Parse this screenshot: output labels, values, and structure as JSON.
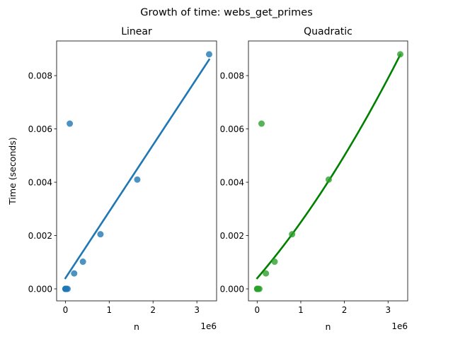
{
  "suptitle": "Growth of time: webs_get_primes",
  "chart_data": [
    {
      "type": "scatter",
      "title": "Linear",
      "xlabel": "n",
      "ylabel": "Time (seconds)",
      "x_offset_label": "1e6",
      "xlim": [
        -200000,
        3450000
      ],
      "ylim": [
        -0.00045,
        0.0093
      ],
      "xticks": [
        0,
        1000000,
        2000000,
        3000000
      ],
      "xtick_labels": [
        "0",
        "1",
        "2",
        "3"
      ],
      "yticks": [
        0,
        0.002,
        0.004,
        0.006,
        0.008
      ],
      "ytick_labels": [
        "0.000",
        "0.002",
        "0.004",
        "0.006",
        "0.008"
      ],
      "point_color": "#1f77b4",
      "line_color": "#1f77b4",
      "points": [
        {
          "x": 0,
          "y": 0.0
        },
        {
          "x": 1000,
          "y": 0.0
        },
        {
          "x": 3000,
          "y": 0.0
        },
        {
          "x": 6000,
          "y": 0.0
        },
        {
          "x": 12000,
          "y": 0.0
        },
        {
          "x": 25000,
          "y": 0.0
        },
        {
          "x": 50000,
          "y": 0.0
        },
        {
          "x": 100000,
          "y": 0.0062
        },
        {
          "x": 200000,
          "y": 0.00058
        },
        {
          "x": 400000,
          "y": 0.00102
        },
        {
          "x": 800000,
          "y": 0.00205
        },
        {
          "x": 1640000,
          "y": 0.0041
        },
        {
          "x": 3280000,
          "y": 0.0088
        }
      ],
      "fit": {
        "kind": "linear",
        "x_range": [
          0,
          3280000
        ],
        "intercept": 0.0004,
        "slope": 2.5e-09
      }
    },
    {
      "type": "scatter",
      "title": "Quadratic",
      "xlabel": "n",
      "ylabel": "",
      "x_offset_label": "1e6",
      "xlim": [
        -200000,
        3450000
      ],
      "ylim": [
        -0.00045,
        0.0093
      ],
      "xticks": [
        0,
        1000000,
        2000000,
        3000000
      ],
      "xtick_labels": [
        "0",
        "1",
        "2",
        "3"
      ],
      "yticks": [
        0,
        0.002,
        0.004,
        0.006,
        0.008
      ],
      "ytick_labels": [
        "0.000",
        "0.002",
        "0.004",
        "0.006",
        "0.008"
      ],
      "point_color": "#2ca02c",
      "line_color": "#008000",
      "points": [
        {
          "x": 0,
          "y": 0.0
        },
        {
          "x": 1000,
          "y": 0.0
        },
        {
          "x": 3000,
          "y": 0.0
        },
        {
          "x": 6000,
          "y": 0.0
        },
        {
          "x": 12000,
          "y": 0.0
        },
        {
          "x": 25000,
          "y": 0.0
        },
        {
          "x": 50000,
          "y": 0.0
        },
        {
          "x": 100000,
          "y": 0.0062
        },
        {
          "x": 200000,
          "y": 0.00058
        },
        {
          "x": 400000,
          "y": 0.00102
        },
        {
          "x": 800000,
          "y": 0.00205
        },
        {
          "x": 1640000,
          "y": 0.0041
        },
        {
          "x": 3280000,
          "y": 0.0088
        }
      ],
      "fit": {
        "kind": "quadratic",
        "x_range": [
          0,
          3280000
        ],
        "a": 2e-16,
        "b": 1.9e-09,
        "c": 0.0004
      }
    }
  ]
}
